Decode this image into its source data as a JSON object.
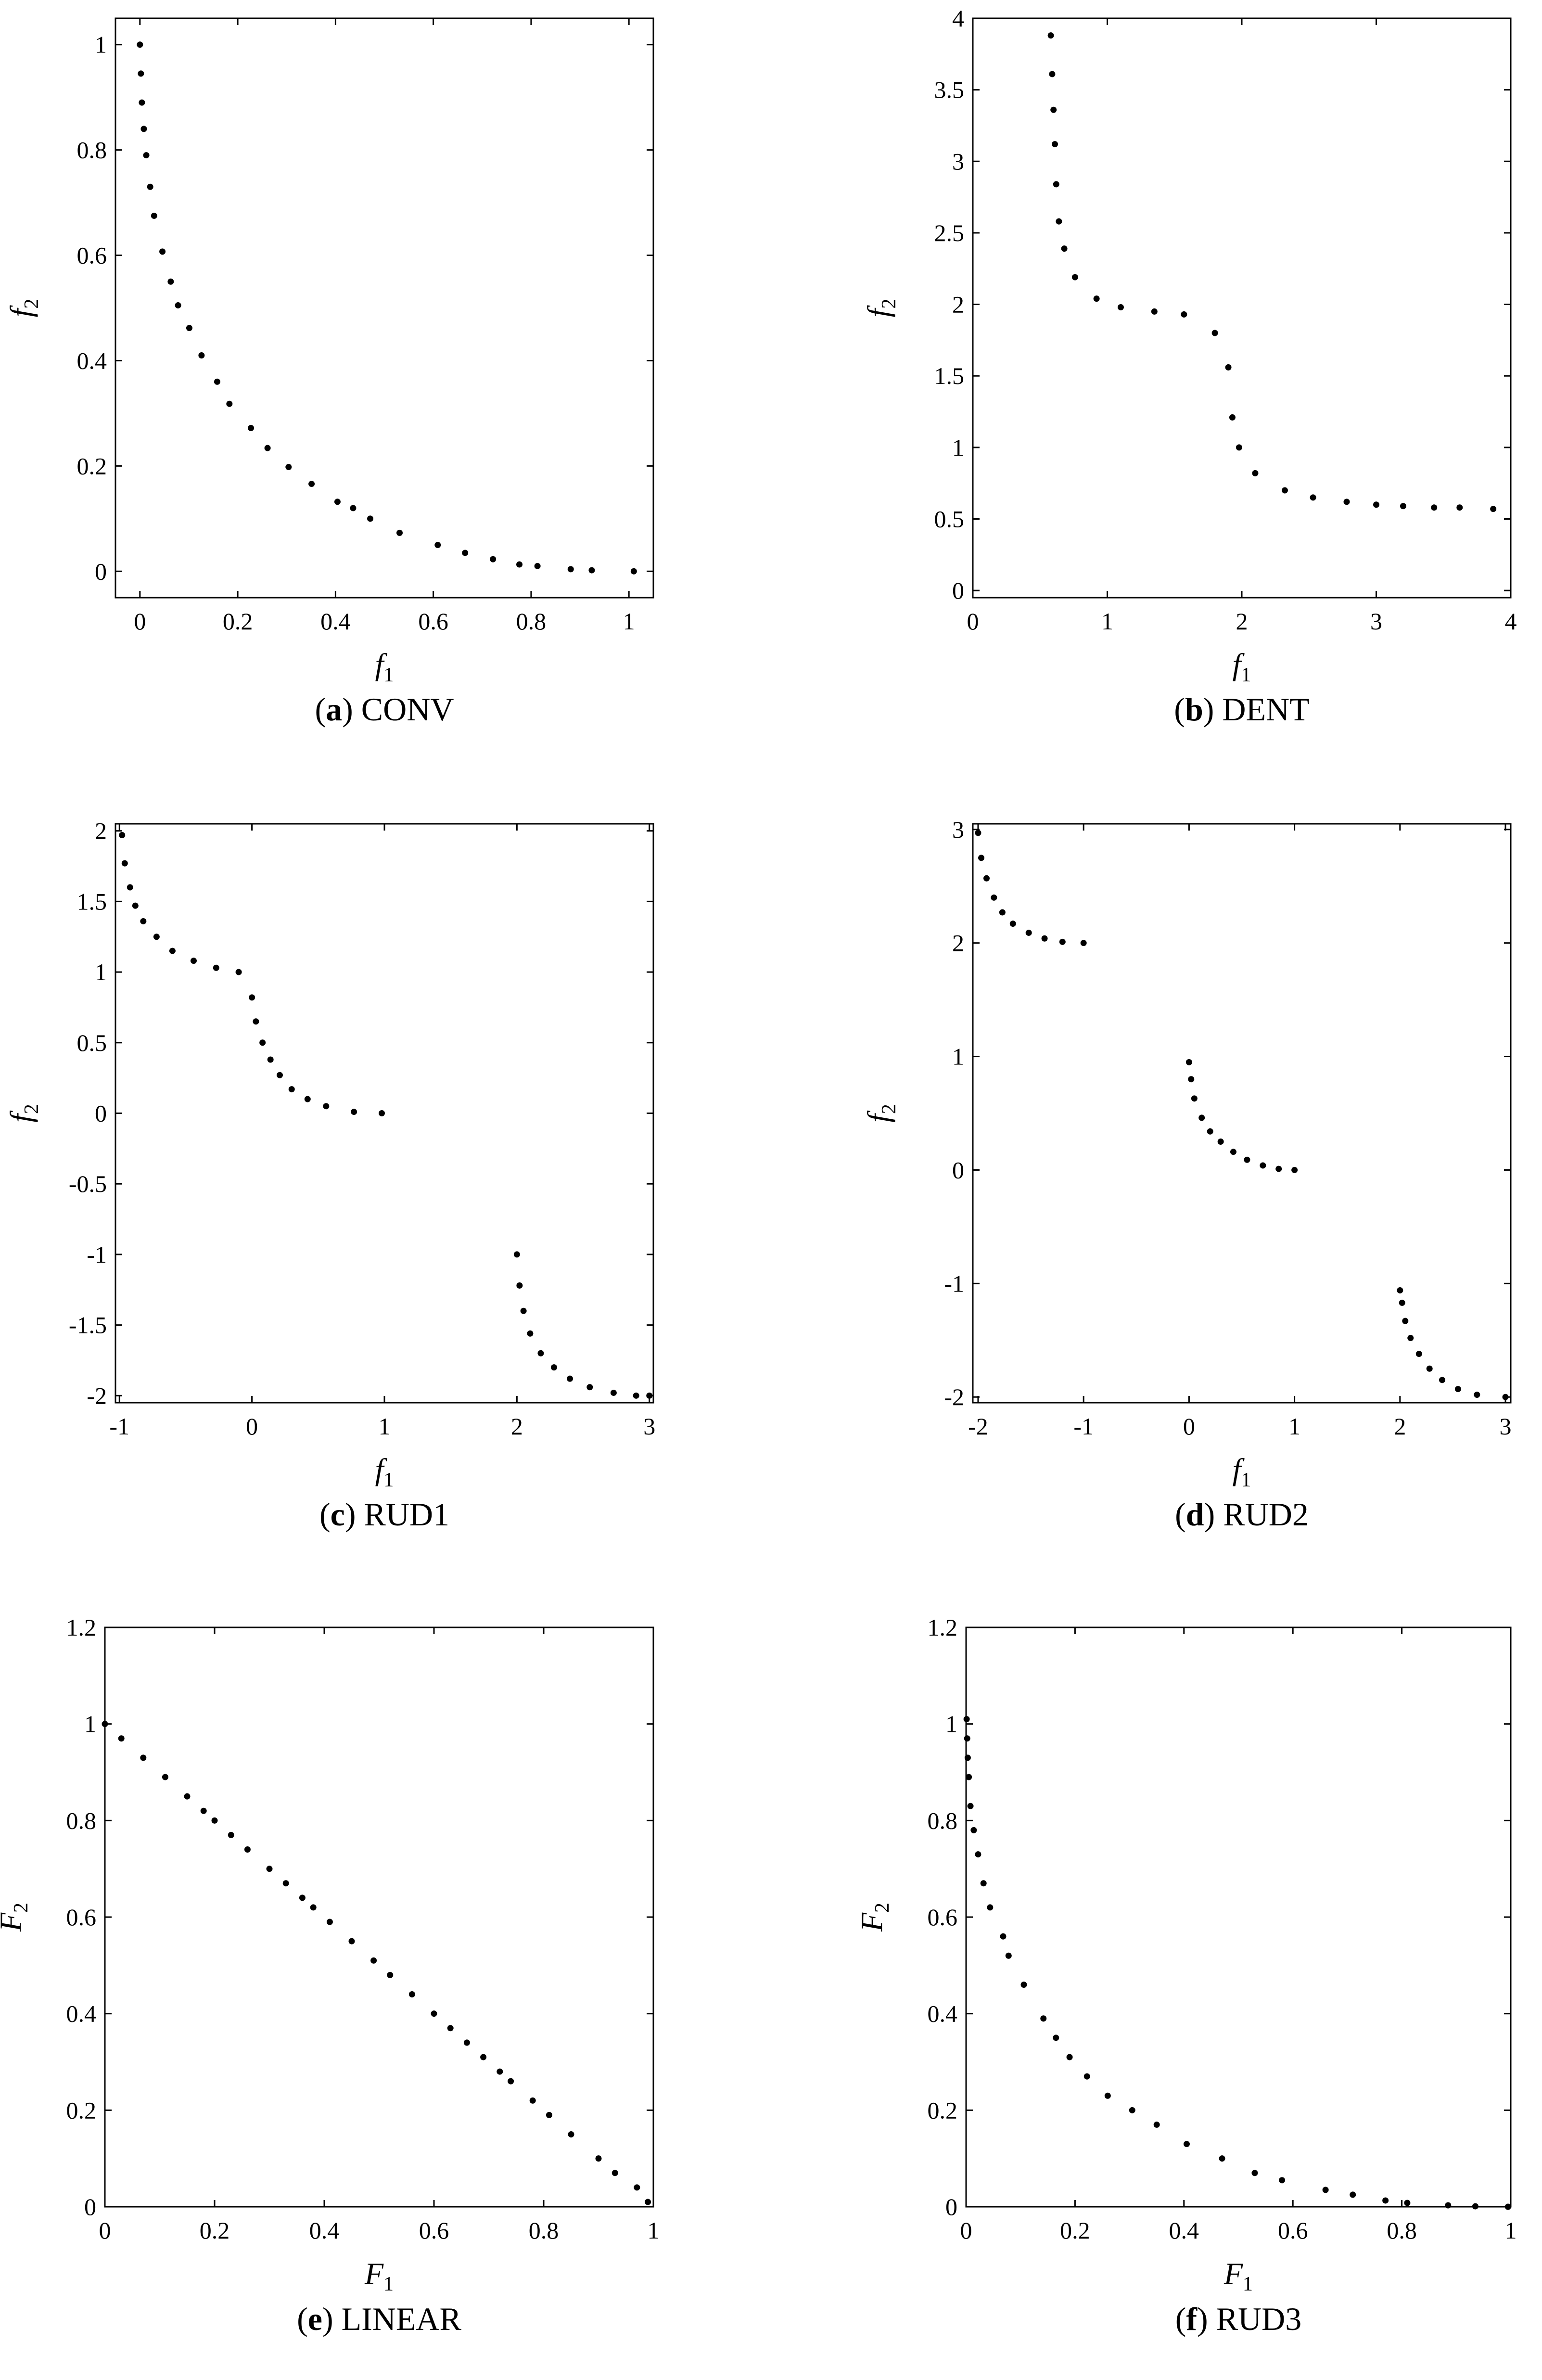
{
  "figure": {
    "background": "#ffffff",
    "marker_color": "#000000",
    "axis_color": "#000000"
  },
  "chart_data": [
    {
      "id": "a",
      "type": "scatter",
      "caption_letter": "(a)",
      "caption_name": "CONV",
      "xlabel": "f",
      "xlabel_sub": "1",
      "xlabel_style": "italic",
      "ylabel": "f",
      "ylabel_sub": "2",
      "ylabel_style": "italic",
      "xlim": [
        -0.05,
        1.05
      ],
      "ylim": [
        -0.05,
        1.05
      ],
      "xticks": [
        0,
        0.2,
        0.4,
        0.6,
        0.8,
        1
      ],
      "xtick_labels": [
        "0",
        "0.2",
        "0.4",
        "0.6",
        "0.8",
        "1"
      ],
      "yticks": [
        0,
        0.2,
        0.4,
        0.6,
        0.8,
        1
      ],
      "ytick_labels": [
        "0",
        "0.2",
        "0.4",
        "0.6",
        "0.8",
        "1"
      ],
      "points": [
        [
          0,
          1
        ],
        [
          0.002,
          0.945
        ],
        [
          0.004,
          0.89
        ],
        [
          0.008,
          0.84
        ],
        [
          0.013,
          0.79
        ],
        [
          0.021,
          0.73
        ],
        [
          0.029,
          0.675
        ],
        [
          0.046,
          0.607
        ],
        [
          0.063,
          0.55
        ],
        [
          0.078,
          0.505
        ],
        [
          0.101,
          0.462
        ],
        [
          0.126,
          0.41
        ],
        [
          0.158,
          0.36
        ],
        [
          0.183,
          0.318
        ],
        [
          0.227,
          0.272
        ],
        [
          0.261,
          0.234
        ],
        [
          0.304,
          0.198
        ],
        [
          0.351,
          0.166
        ],
        [
          0.404,
          0.132
        ],
        [
          0.436,
          0.12
        ],
        [
          0.471,
          0.1
        ],
        [
          0.531,
          0.073
        ],
        [
          0.609,
          0.05
        ],
        [
          0.665,
          0.035
        ],
        [
          0.722,
          0.023
        ],
        [
          0.776,
          0.013
        ],
        [
          0.813,
          0.01
        ],
        [
          0.881,
          0.004
        ],
        [
          0.924,
          0.002
        ],
        [
          1.01,
          0
        ]
      ]
    },
    {
      "id": "b",
      "type": "scatter",
      "caption_letter": "(b)",
      "caption_name": "DENT",
      "xlabel": "f",
      "xlabel_sub": "1",
      "xlabel_style": "italic",
      "ylabel": "f",
      "ylabel_sub": "2",
      "ylabel_style": "italic",
      "xlim": [
        0,
        4
      ],
      "ylim": [
        -0.05,
        4
      ],
      "xticks": [
        0,
        1,
        2,
        3,
        4
      ],
      "xtick_labels": [
        "0",
        "1",
        "2",
        "3",
        "4"
      ],
      "yticks": [
        0,
        0.5,
        1,
        1.5,
        2,
        2.5,
        3,
        3.5,
        4
      ],
      "ytick_labels": [
        "0",
        "0.5",
        "1",
        "1.5",
        "2",
        "2.5",
        "3",
        "3.5",
        "4"
      ],
      "points": [
        [
          0.58,
          3.88
        ],
        [
          0.59,
          3.61
        ],
        [
          0.6,
          3.36
        ],
        [
          0.61,
          3.12
        ],
        [
          0.62,
          2.84
        ],
        [
          0.64,
          2.58
        ],
        [
          0.68,
          2.39
        ],
        [
          0.76,
          2.19
        ],
        [
          0.92,
          2.04
        ],
        [
          1.1,
          1.98
        ],
        [
          1.35,
          1.95
        ],
        [
          1.57,
          1.93
        ],
        [
          1.8,
          1.8
        ],
        [
          1.9,
          1.56
        ],
        [
          1.93,
          1.21
        ],
        [
          1.98,
          1.0
        ],
        [
          2.1,
          0.82
        ],
        [
          2.32,
          0.7
        ],
        [
          2.53,
          0.65
        ],
        [
          2.78,
          0.62
        ],
        [
          3.0,
          0.6
        ],
        [
          3.2,
          0.59
        ],
        [
          3.43,
          0.58
        ],
        [
          3.62,
          0.58
        ],
        [
          3.87,
          0.57
        ]
      ]
    },
    {
      "id": "c",
      "type": "scatter",
      "caption_letter": "(c)",
      "caption_name": "RUD1",
      "xlabel": "f",
      "xlabel_sub": "1",
      "xlabel_style": "italic",
      "ylabel": "f",
      "ylabel_sub": "2",
      "ylabel_style": "italic",
      "xlim": [
        -1.03,
        3.03
      ],
      "ylim": [
        -2.05,
        2.05
      ],
      "xticks": [
        -1,
        0,
        1,
        2,
        3
      ],
      "xtick_labels": [
        "-1",
        "0",
        "1",
        "2",
        "3"
      ],
      "yticks": [
        -2,
        -1.5,
        -1,
        -0.5,
        0,
        0.5,
        1,
        1.5,
        2
      ],
      "ytick_labels": [
        "-2",
        "-1.5",
        "-1",
        "-0.5",
        "0",
        "0.5",
        "1",
        "1.5",
        "2"
      ],
      "points": [
        [
          -0.98,
          1.97
        ],
        [
          -0.96,
          1.77
        ],
        [
          -0.92,
          1.6
        ],
        [
          -0.88,
          1.47
        ],
        [
          -0.82,
          1.36
        ],
        [
          -0.72,
          1.25
        ],
        [
          -0.6,
          1.15
        ],
        [
          -0.44,
          1.08
        ],
        [
          -0.27,
          1.03
        ],
        [
          -0.1,
          1.0
        ],
        [
          0.0,
          0.82
        ],
        [
          0.03,
          0.65
        ],
        [
          0.08,
          0.5
        ],
        [
          0.14,
          0.38
        ],
        [
          0.21,
          0.27
        ],
        [
          0.3,
          0.17
        ],
        [
          0.42,
          0.1
        ],
        [
          0.56,
          0.05
        ],
        [
          0.77,
          0.01
        ],
        [
          0.98,
          0.0
        ],
        [
          2.0,
          -1.0
        ],
        [
          2.02,
          -1.22
        ],
        [
          2.05,
          -1.4
        ],
        [
          2.1,
          -1.56
        ],
        [
          2.18,
          -1.7
        ],
        [
          2.28,
          -1.8
        ],
        [
          2.4,
          -1.88
        ],
        [
          2.55,
          -1.94
        ],
        [
          2.73,
          -1.98
        ],
        [
          2.9,
          -2.0
        ],
        [
          3.0,
          -2.0
        ]
      ]
    },
    {
      "id": "d",
      "type": "scatter",
      "caption_letter": "(d)",
      "caption_name": "RUD2",
      "xlabel": "f",
      "xlabel_sub": "1",
      "xlabel_style": "italic",
      "ylabel": "f",
      "ylabel_sub": "2",
      "ylabel_style": "italic",
      "xlim": [
        -2.05,
        3.05
      ],
      "ylim": [
        -2.05,
        3.05
      ],
      "xticks": [
        -2,
        -1,
        0,
        1,
        2,
        3
      ],
      "xtick_labels": [
        "-2",
        "-1",
        "0",
        "1",
        "2",
        "3"
      ],
      "yticks": [
        -2,
        -1,
        0,
        1,
        2,
        3
      ],
      "ytick_labels": [
        "-2",
        "-1",
        "0",
        "1",
        "2",
        "3"
      ],
      "points": [
        [
          -2.0,
          2.97
        ],
        [
          -1.97,
          2.75
        ],
        [
          -1.92,
          2.57
        ],
        [
          -1.85,
          2.4
        ],
        [
          -1.77,
          2.27
        ],
        [
          -1.67,
          2.17
        ],
        [
          -1.52,
          2.09
        ],
        [
          -1.37,
          2.04
        ],
        [
          -1.2,
          2.01
        ],
        [
          -1.0,
          2.0
        ],
        [
          0.0,
          0.95
        ],
        [
          0.02,
          0.8
        ],
        [
          0.05,
          0.63
        ],
        [
          0.12,
          0.46
        ],
        [
          0.2,
          0.34
        ],
        [
          0.3,
          0.25
        ],
        [
          0.42,
          0.16
        ],
        [
          0.55,
          0.09
        ],
        [
          0.7,
          0.04
        ],
        [
          0.85,
          0.01
        ],
        [
          1.0,
          0.0
        ],
        [
          2.0,
          -1.06
        ],
        [
          2.02,
          -1.17
        ],
        [
          2.05,
          -1.33
        ],
        [
          2.1,
          -1.48
        ],
        [
          2.18,
          -1.62
        ],
        [
          2.28,
          -1.75
        ],
        [
          2.4,
          -1.85
        ],
        [
          2.55,
          -1.93
        ],
        [
          2.73,
          -1.98
        ],
        [
          3.0,
          -2.0
        ]
      ]
    },
    {
      "id": "e",
      "type": "scatter",
      "caption_letter": "(e)",
      "caption_name": "LINEAR",
      "xlabel": "F",
      "xlabel_sub": "1",
      "xlabel_style": "italic",
      "ylabel": "F",
      "ylabel_sub": "2",
      "ylabel_style": "italic",
      "xlim": [
        0,
        1
      ],
      "ylim": [
        0,
        1.2
      ],
      "xticks": [
        0,
        0.2,
        0.4,
        0.6,
        0.8,
        1
      ],
      "xtick_labels": [
        "0",
        "0.2",
        "0.4",
        "0.6",
        "0.8",
        "1"
      ],
      "yticks": [
        0,
        0.2,
        0.4,
        0.6,
        0.8,
        1,
        1.2
      ],
      "ytick_labels": [
        "0",
        "0.2",
        "0.4",
        "0.6",
        "0.8",
        "1",
        "1.2"
      ],
      "points": [
        [
          0.0,
          1.0
        ],
        [
          0.03,
          0.97
        ],
        [
          0.07,
          0.93
        ],
        [
          0.11,
          0.89
        ],
        [
          0.15,
          0.85
        ],
        [
          0.18,
          0.82
        ],
        [
          0.2,
          0.8
        ],
        [
          0.23,
          0.77
        ],
        [
          0.26,
          0.74
        ],
        [
          0.3,
          0.7
        ],
        [
          0.33,
          0.67
        ],
        [
          0.36,
          0.64
        ],
        [
          0.38,
          0.62
        ],
        [
          0.41,
          0.59
        ],
        [
          0.45,
          0.55
        ],
        [
          0.49,
          0.51
        ],
        [
          0.52,
          0.48
        ],
        [
          0.56,
          0.44
        ],
        [
          0.6,
          0.4
        ],
        [
          0.63,
          0.37
        ],
        [
          0.66,
          0.34
        ],
        [
          0.69,
          0.31
        ],
        [
          0.72,
          0.28
        ],
        [
          0.74,
          0.26
        ],
        [
          0.78,
          0.22
        ],
        [
          0.81,
          0.19
        ],
        [
          0.85,
          0.15
        ],
        [
          0.9,
          0.1
        ],
        [
          0.93,
          0.07
        ],
        [
          0.97,
          0.04
        ],
        [
          0.99,
          0.01
        ]
      ]
    },
    {
      "id": "f",
      "type": "scatter",
      "caption_letter": "(f)",
      "caption_name": "RUD3",
      "xlabel": "F",
      "xlabel_sub": "1",
      "xlabel_style": "italic",
      "ylabel": "F",
      "ylabel_sub": "2",
      "ylabel_style": "italic",
      "xlim": [
        0,
        1
      ],
      "ylim": [
        0,
        1.2
      ],
      "xticks": [
        0,
        0.2,
        0.4,
        0.6,
        0.8,
        1
      ],
      "xtick_labels": [
        "0",
        "0.2",
        "0.4",
        "0.6",
        "0.8",
        "1"
      ],
      "yticks": [
        0,
        0.2,
        0.4,
        0.6,
        0.8,
        1,
        1.2
      ],
      "ytick_labels": [
        "0",
        "0.2",
        "0.4",
        "0.6",
        "0.8",
        "1",
        "1.2"
      ],
      "points": [
        [
          0.001,
          1.01
        ],
        [
          0.002,
          0.97
        ],
        [
          0.003,
          0.93
        ],
        [
          0.005,
          0.89
        ],
        [
          0.008,
          0.83
        ],
        [
          0.014,
          0.78
        ],
        [
          0.022,
          0.73
        ],
        [
          0.032,
          0.67
        ],
        [
          0.044,
          0.62
        ],
        [
          0.068,
          0.56
        ],
        [
          0.078,
          0.52
        ],
        [
          0.106,
          0.46
        ],
        [
          0.142,
          0.39
        ],
        [
          0.165,
          0.35
        ],
        [
          0.19,
          0.31
        ],
        [
          0.222,
          0.27
        ],
        [
          0.26,
          0.23
        ],
        [
          0.305,
          0.2
        ],
        [
          0.35,
          0.17
        ],
        [
          0.405,
          0.13
        ],
        [
          0.47,
          0.1
        ],
        [
          0.53,
          0.07
        ],
        [
          0.58,
          0.055
        ],
        [
          0.66,
          0.035
        ],
        [
          0.71,
          0.025
        ],
        [
          0.77,
          0.013
        ],
        [
          0.81,
          0.008
        ],
        [
          0.885,
          0.003
        ],
        [
          0.935,
          0.001
        ],
        [
          0.995,
          0.0
        ]
      ]
    }
  ]
}
